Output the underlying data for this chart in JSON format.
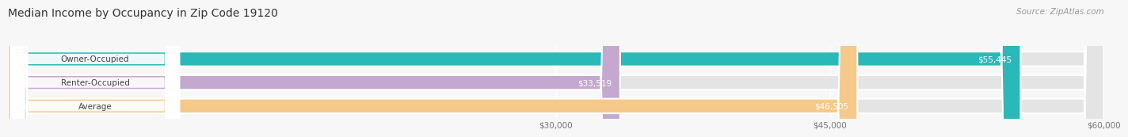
{
  "title": "Median Income by Occupancy in Zip Code 19120",
  "source": "Source: ZipAtlas.com",
  "categories": [
    "Owner-Occupied",
    "Renter-Occupied",
    "Average"
  ],
  "values": [
    55445,
    33519,
    46505
  ],
  "bar_colors": [
    "#2ab8b8",
    "#c4a8d0",
    "#f5c98a"
  ],
  "bar_labels": [
    "$55,445",
    "$33,519",
    "$46,505"
  ],
  "xmin": 0,
  "xmax": 60000,
  "xticks": [
    30000,
    45000,
    60000
  ],
  "xtick_labels": [
    "$30,000",
    "$45,000",
    "$60,000"
  ],
  "background_color": "#f7f7f7",
  "bar_bg_color": "#e4e4e4",
  "title_fontsize": 10,
  "source_fontsize": 7.5,
  "label_fontsize": 7.5,
  "tick_fontsize": 7.5,
  "bar_height": 0.62,
  "label_pill_color": "#ffffff",
  "label_text_color": "#444444",
  "value_label_color": "#ffffff",
  "grid_color": "#ffffff"
}
